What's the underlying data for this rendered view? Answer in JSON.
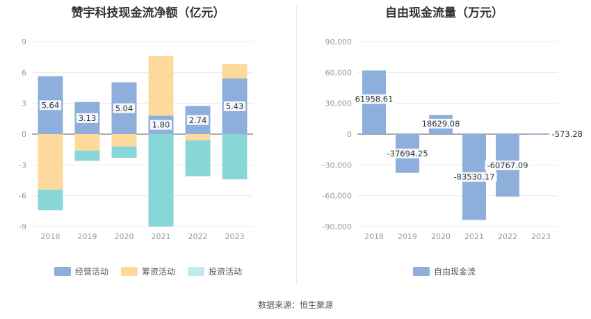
{
  "source_text": "数据来源：恒生聚源",
  "chart_data": [
    {
      "type": "bar",
      "stacked": true,
      "title": "赞宇科技现金流净额（亿元）",
      "categories": [
        "2018",
        "2019",
        "2020",
        "2021",
        "2022",
        "2023"
      ],
      "ylim": [
        -9,
        9
      ],
      "yticks": [
        9,
        6,
        3,
        0,
        -3,
        -6,
        -9
      ],
      "ytick_labels": [
        "9",
        "6",
        "3",
        "0",
        "-3",
        "-6",
        "-9"
      ],
      "grid": true,
      "legend_position": "bottom",
      "series": [
        {
          "name": "经营活动",
          "color": "#8eaedc",
          "values": [
            5.64,
            3.13,
            5.04,
            1.8,
            2.74,
            5.43
          ],
          "data_labels": [
            "5.64",
            "3.13",
            "5.04",
            "1.80",
            "2.74",
            "5.43"
          ]
        },
        {
          "name": "筹资活动",
          "color": "#fdd99b",
          "values": [
            -5.4,
            -1.6,
            -1.2,
            5.8,
            -0.6,
            1.4
          ]
        },
        {
          "name": "投资活动",
          "color": "#89d6d8",
          "legend_color": "#c3eaeb",
          "values": [
            -2.0,
            -1.0,
            -1.1,
            -9.0,
            -3.5,
            -4.4
          ]
        }
      ]
    },
    {
      "type": "bar",
      "title": "自由现金流量（万元）",
      "categories": [
        "2018",
        "2019",
        "2020",
        "2021",
        "2022",
        "2023"
      ],
      "ylim": [
        -90000,
        90000
      ],
      "yticks": [
        90000,
        60000,
        30000,
        0,
        -30000,
        -60000,
        -90000
      ],
      "ytick_labels": [
        "90,000",
        "60,000",
        "30,000",
        "0",
        "-30,000",
        "-60,000",
        "-90,000"
      ],
      "grid": true,
      "legend_position": "bottom",
      "series": [
        {
          "name": "自由现金流",
          "color": "#8eaedc",
          "values": [
            61958.61,
            -37694.25,
            18629.08,
            -83530.17,
            -60767.09,
            -573.28
          ],
          "data_labels": [
            "61958.61",
            "-37694.25",
            "18629.08",
            "-83530.17",
            "-60767.09",
            "-573.28"
          ]
        }
      ]
    }
  ]
}
